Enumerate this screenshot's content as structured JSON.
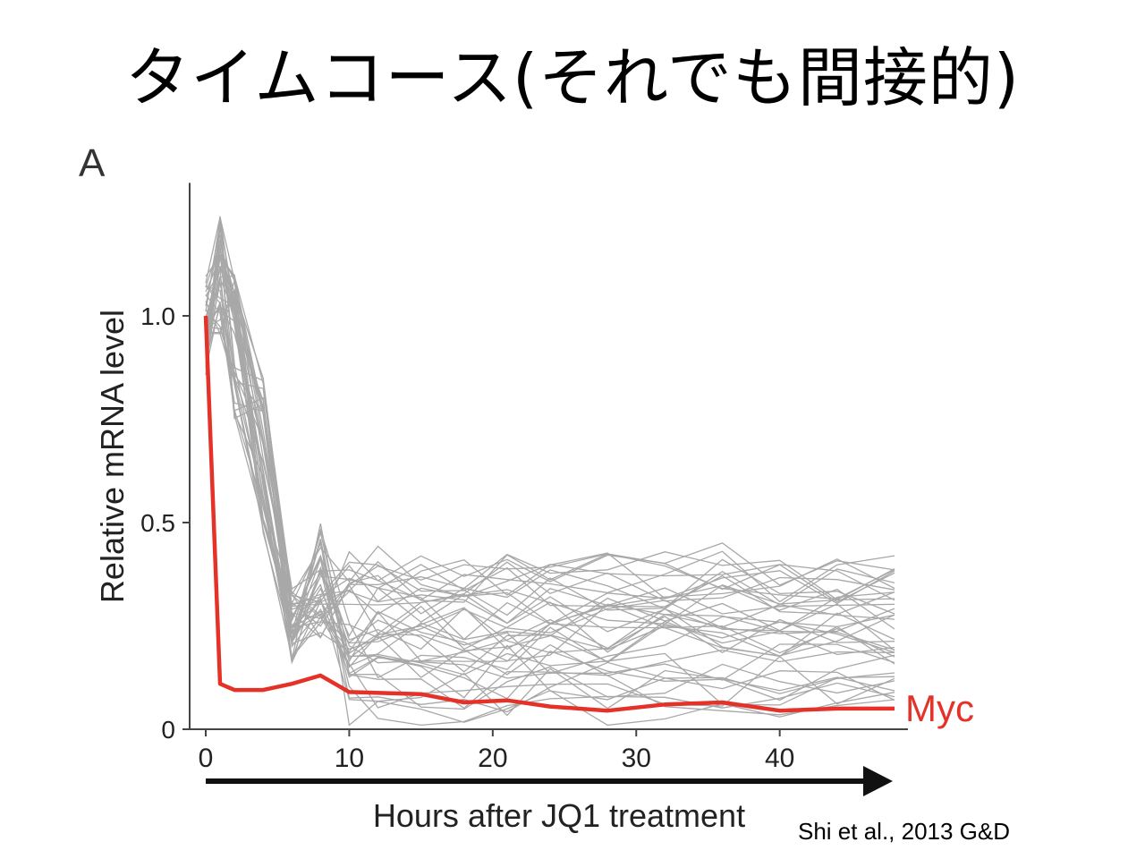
{
  "slide": {
    "title": "タイムコース(それでも間接的)",
    "panel_letter": "A",
    "citation": "Shi et al., 2013 G&D"
  },
  "colors": {
    "highlight": "#e53228",
    "background_lines": "#a8a8a8",
    "axis": "#444444"
  },
  "chart_data": {
    "type": "line",
    "title": "",
    "xlabel": "Hours after JQ1 treatment",
    "ylabel": "Relative mRNA level",
    "xlim": [
      -1,
      48
    ],
    "ylim": [
      0,
      1.3
    ],
    "x_ticks": [
      0,
      10,
      20,
      30,
      40
    ],
    "x_tick_labels": [
      "0",
      "10",
      "20",
      "30",
      "40"
    ],
    "y_ticks": [
      0,
      0.5,
      1.0
    ],
    "y_tick_labels": [
      "0",
      "0.5",
      "1.0"
    ],
    "grid": false,
    "x_axis_arrow": true,
    "highlight_series": {
      "name": "Myc",
      "label_position": "right-end",
      "x": [
        0,
        1,
        2,
        4,
        6,
        8,
        10,
        15,
        18,
        21,
        24,
        28,
        32,
        36,
        40,
        44,
        48
      ],
      "values": [
        1.0,
        0.11,
        0.095,
        0.095,
        0.11,
        0.13,
        0.09,
        0.085,
        0.065,
        0.07,
        0.055,
        0.045,
        0.06,
        0.065,
        0.045,
        0.05,
        0.05
      ]
    },
    "background_series_count": 40,
    "background_series_pattern": "rise to 1.0–1.25 at 0–1 h, fall to 0.2–0.35 by 6 h, spike to 0.3–0.5 at 8 h, then fluctuate between 0.02 and 0.5 until 48 h"
  }
}
